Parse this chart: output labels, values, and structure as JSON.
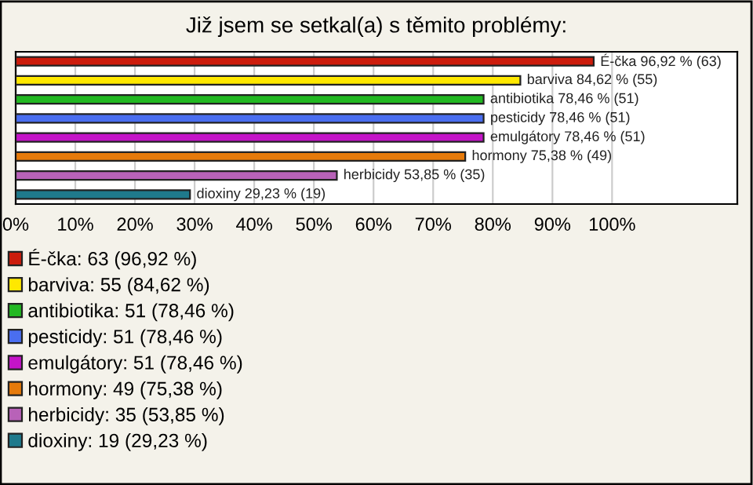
{
  "chart_data": {
    "type": "bar",
    "orientation": "horizontal",
    "title": "Již jsem se setkal(a) s těmito problémy:",
    "categories": [
      null,
      null,
      null,
      null,
      null,
      null,
      null,
      null
    ],
    "series": [
      {
        "name": "É-čka: 63 (96,92 %)",
        "color": "#cc1c0c",
        "values": [
          96.92,
          null,
          null,
          null,
          null,
          null,
          null,
          null
        ],
        "value_labels": [
          "É-čka 96,92 % (63)",
          null,
          null,
          null,
          null,
          null,
          null,
          null
        ]
      },
      {
        "name": "barviva: 55 (84,62 %)",
        "color": "#ffe800",
        "values": [
          null,
          84.62,
          null,
          null,
          null,
          null,
          null,
          null
        ],
        "value_labels": [
          null,
          "barviva 84,62 % (55)",
          null,
          null,
          null,
          null,
          null,
          null
        ]
      },
      {
        "name": "antibiotika: 51 (78,46 %)",
        "color": "#22b822",
        "values": [
          null,
          null,
          78.46,
          null,
          null,
          null,
          null,
          null
        ],
        "value_labels": [
          null,
          null,
          "antibiotika 78,46 % (51)",
          null,
          null,
          null,
          null,
          null
        ]
      },
      {
        "name": "pesticidy: 51 (78,46 %)",
        "color": "#4a6ef0",
        "values": [
          null,
          null,
          null,
          78.46,
          null,
          null,
          null,
          null
        ],
        "value_labels": [
          null,
          null,
          null,
          "pesticidy 78,46 % (51)",
          null,
          null,
          null,
          null
        ]
      },
      {
        "name": "emulgátory: 51 (78,46 %)",
        "color": "#c414c8",
        "values": [
          null,
          null,
          null,
          null,
          78.46,
          null,
          null,
          null
        ],
        "value_labels": [
          null,
          null,
          null,
          null,
          "emulgátory 78,46 % (51)",
          null,
          null,
          null
        ]
      },
      {
        "name": "hormony: 49 (75,38 %)",
        "color": "#e67a0a",
        "values": [
          null,
          null,
          null,
          null,
          null,
          75.38,
          null,
          null
        ],
        "value_labels": [
          null,
          null,
          null,
          null,
          null,
          "hormony 75,38 % (49)",
          null,
          null
        ]
      },
      {
        "name": "herbicidy: 35 (53,85 %)",
        "color": "#b862b8",
        "values": [
          null,
          null,
          null,
          null,
          null,
          null,
          53.85,
          null
        ],
        "value_labels": [
          null,
          null,
          null,
          null,
          null,
          null,
          "herbicidy 53,85 % (35)",
          null
        ]
      },
      {
        "name": "dioxiny: 19 (29,23 %)",
        "color": "#1f7a8c",
        "values": [
          null,
          null,
          null,
          null,
          null,
          null,
          null,
          29.23
        ],
        "value_labels": [
          null,
          null,
          null,
          null,
          null,
          null,
          null,
          "dioxiny 29,23 % (19)"
        ]
      }
    ],
    "xlim": [
      0,
      121
    ],
    "xticks": [
      {
        "value": 0,
        "label": "0%"
      },
      {
        "value": 10,
        "label": "10%"
      },
      {
        "value": 20,
        "label": "20%"
      },
      {
        "value": 30,
        "label": "30%"
      },
      {
        "value": 40,
        "label": "40%"
      },
      {
        "value": 50,
        "label": "50%"
      },
      {
        "value": 60,
        "label": "60%"
      },
      {
        "value": 70,
        "label": "70%"
      },
      {
        "value": 80,
        "label": "80%"
      },
      {
        "value": 90,
        "label": "90%"
      },
      {
        "value": 100,
        "label": "100%"
      }
    ],
    "grid": "x",
    "legend": "bottom left"
  }
}
